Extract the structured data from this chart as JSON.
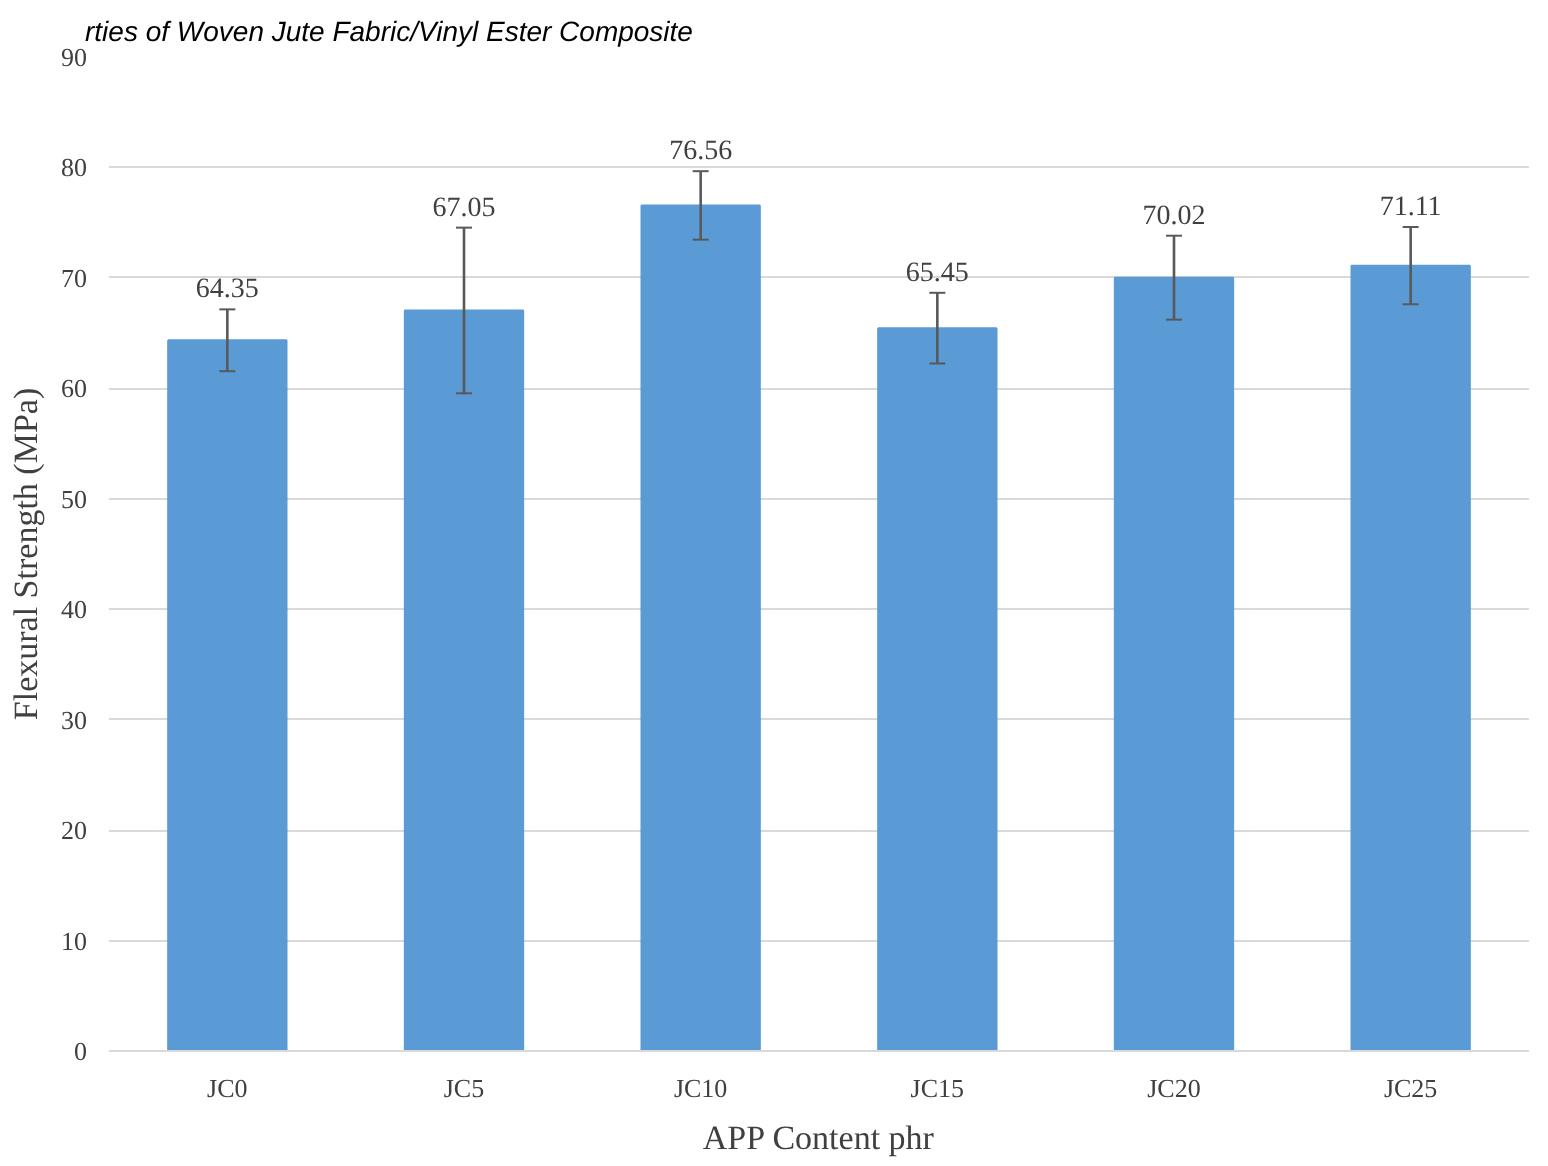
{
  "chart_data": {
    "type": "bar",
    "title": "rties of Woven Jute Fabric/Vinyl Ester Composite",
    "xlabel": "APP Content phr",
    "ylabel": "Flexural Strength (MPa)",
    "categories": [
      "JC0",
      "JC5",
      "JC10",
      "JC15",
      "JC20",
      "JC25"
    ],
    "values": [
      64.35,
      67.05,
      76.56,
      65.45,
      70.02,
      71.11
    ],
    "errors": [
      2.8,
      7.5,
      3.1,
      3.2,
      3.8,
      3.5
    ],
    "color": "#5b9bd5",
    "data_labels": true,
    "ylim": [
      0,
      90
    ],
    "yticks": [
      0,
      10,
      20,
      30,
      40,
      50,
      60,
      70,
      80,
      90
    ],
    "grid": "y"
  }
}
